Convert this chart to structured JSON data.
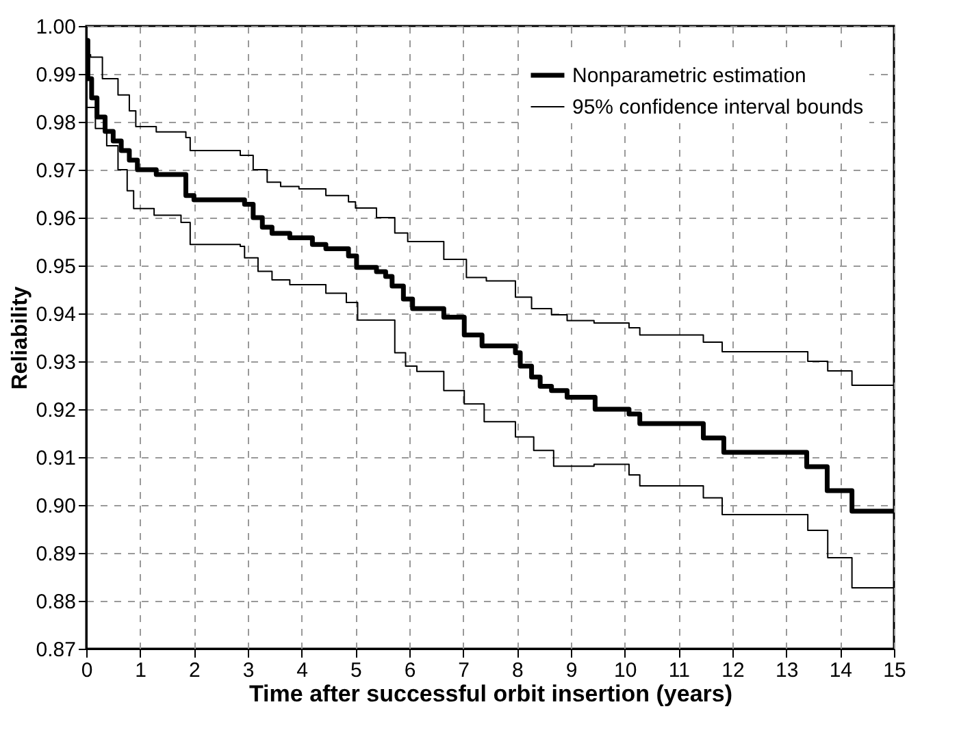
{
  "chart_data": {
    "type": "step",
    "xlabel": "Time after successful orbit insertion (years)",
    "ylabel": "Reliability",
    "xlim": [
      0,
      15
    ],
    "xticks": [
      0,
      1,
      2,
      3,
      4,
      5,
      6,
      7,
      8,
      9,
      10,
      11,
      12,
      13,
      14,
      15
    ],
    "ylim": [
      0.87,
      1.0
    ],
    "yticks": [
      0.87,
      0.88,
      0.89,
      {
        "value": 0.9,
        "label": "0.90"
      },
      0.91,
      0.92,
      0.93,
      0.94,
      0.95,
      0.96,
      0.97,
      0.98,
      0.99,
      {
        "value": 1.0,
        "label": "1.00"
      }
    ],
    "grid": true,
    "legend": "top right",
    "marker": "none",
    "series": [
      {
        "name": "Nonparametric estimation",
        "color": "#000000",
        "x": [
          0,
          0.03,
          0.1,
          0.2,
          0.35,
          0.5,
          0.65,
          0.8,
          0.95,
          1.3,
          1.85,
          2.0,
          2.1,
          2.94,
          3.1,
          3.27,
          3.45,
          3.78,
          4.2,
          4.45,
          4.87,
          5.02,
          5.39,
          5.56,
          5.68,
          5.89,
          6.06,
          6.64,
          7.02,
          7.35,
          7.97,
          8.06,
          8.27,
          8.43,
          8.64,
          8.93,
          9.45,
          10.08,
          10.28,
          11.46,
          11.84,
          13.38,
          13.76,
          14.22,
          15
        ],
        "values": [
          0.997,
          0.989,
          0.985,
          0.981,
          0.978,
          0.976,
          0.974,
          0.972,
          0.97,
          0.969,
          0.9646,
          0.9637,
          0.9637,
          0.9628,
          0.96,
          0.958,
          0.9567,
          0.9558,
          0.9544,
          0.9535,
          0.952,
          0.9496,
          0.9487,
          0.9477,
          0.9457,
          0.943,
          0.941,
          0.9392,
          0.9355,
          0.9332,
          0.9318,
          0.929,
          0.9267,
          0.9248,
          0.9239,
          0.9225,
          0.92,
          0.919,
          0.917,
          0.914,
          0.911,
          0.908,
          0.903,
          0.8987,
          0.8987
        ]
      },
      {
        "name": "95% confidence interval bounds",
        "color": "#000000",
        "x": [
          0,
          0.08,
          0.3,
          0.59,
          0.8,
          0.92,
          1.3,
          1.85,
          1.93,
          2.86,
          3.1,
          3.36,
          3.61,
          3.95,
          4.45,
          4.87,
          5.0,
          5.39,
          5.73,
          5.97,
          6.64,
          7.06,
          7.43,
          7.97,
          8.27,
          8.64,
          8.93,
          9.43,
          10.08,
          10.28,
          11.46,
          11.81,
          13.4,
          13.77,
          14.22,
          15
        ],
        "values": [
          0.994,
          0.9935,
          0.989,
          0.9856,
          0.9823,
          0.979,
          0.9779,
          0.9767,
          0.974,
          0.973,
          0.97,
          0.9674,
          0.9665,
          0.966,
          0.9646,
          0.9633,
          0.962,
          0.96,
          0.9568,
          0.955,
          0.9513,
          0.9475,
          0.9468,
          0.9434,
          0.941,
          0.9397,
          0.9385,
          0.938,
          0.937,
          0.9355,
          0.934,
          0.932,
          0.93,
          0.928,
          0.925,
          0.922
        ]
      },
      {
        "color": "#000000",
        "x": [
          0,
          0.17,
          0.38,
          0.59,
          0.76,
          0.88,
          1.26,
          1.76,
          1.93,
          2.86,
          2.94,
          3.19,
          3.45,
          3.78,
          4.45,
          4.83,
          5.04,
          5.73,
          5.93,
          6.14,
          6.64,
          7.02,
          7.39,
          7.97,
          8.31,
          8.68,
          9.43,
          10.08,
          10.28,
          11.46,
          11.81,
          13.4,
          13.77,
          14.22,
          15
        ],
        "values": [
          0.983,
          0.9786,
          0.975,
          0.97,
          0.9656,
          0.9619,
          0.9605,
          0.959,
          0.9544,
          0.954,
          0.9516,
          0.9488,
          0.947,
          0.946,
          0.9442,
          0.9423,
          0.9386,
          0.9318,
          0.929,
          0.9279,
          0.9239,
          0.9211,
          0.9174,
          0.9142,
          0.9114,
          0.9081,
          0.9085,
          0.9063,
          0.904,
          0.9015,
          0.898,
          0.8947,
          0.889,
          0.8827,
          0.8765
        ]
      }
    ]
  }
}
